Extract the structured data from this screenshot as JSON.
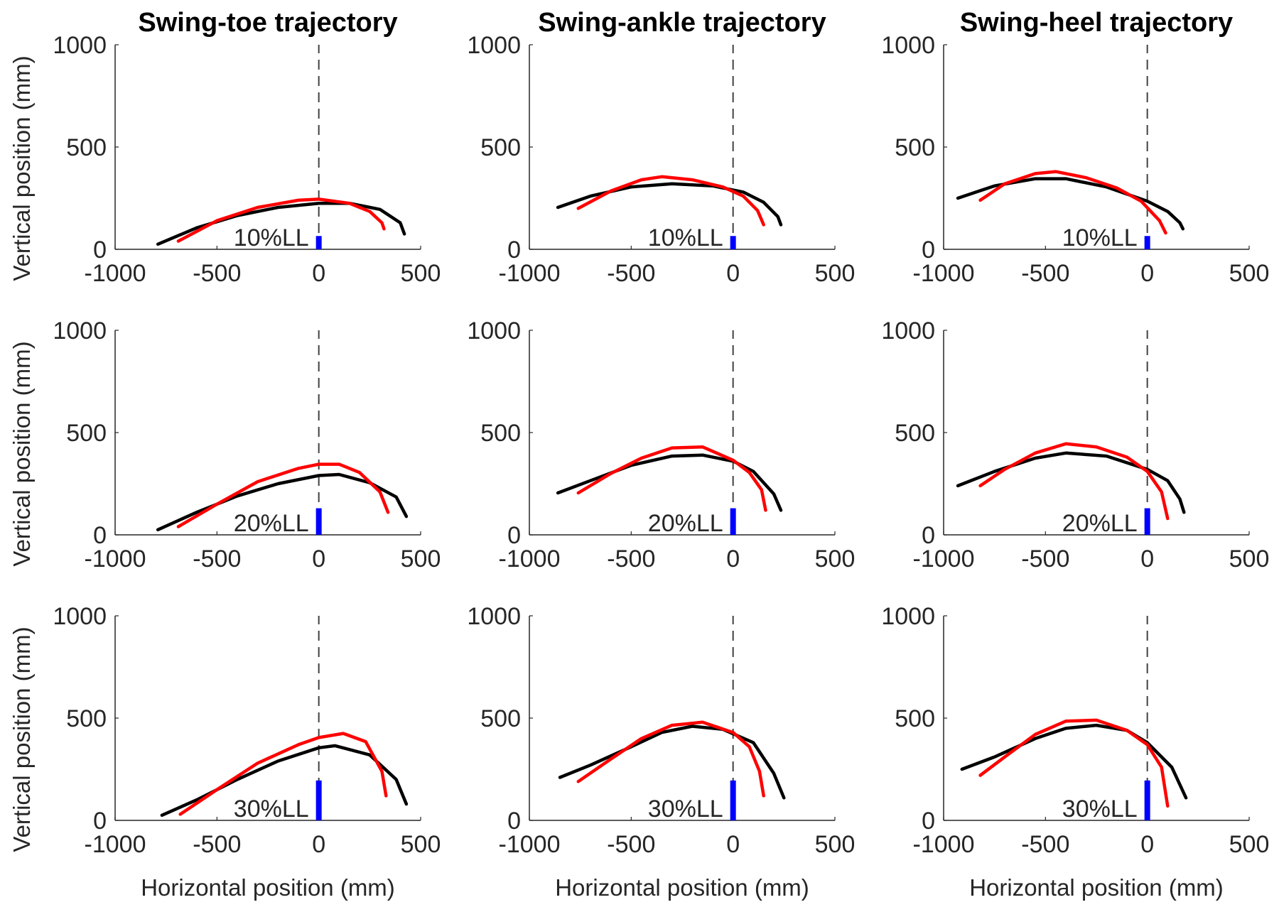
{
  "chart_data": {
    "type": "line",
    "figure_layout": "3x3 grid of panels",
    "columns": [
      {
        "title": "Swing-toe trajectory"
      },
      {
        "title": "Swing-ankle trajectory"
      },
      {
        "title": "Swing-heel trajectory"
      }
    ],
    "rows": [
      {
        "ylabel": "Vertical position (mm)",
        "obstacle_label": "10%LL",
        "obstacle_height": 65
      },
      {
        "ylabel": "Vertical position (mm)",
        "obstacle_label": "20%LL",
        "obstacle_height": 130
      },
      {
        "ylabel": "Vertical position (mm)",
        "obstacle_label": "30%LL",
        "obstacle_height": 195
      }
    ],
    "xlabel": "Horizontal position (mm)",
    "xlim": [
      -1000,
      500
    ],
    "ylim": [
      0,
      1000
    ],
    "xticks": [
      "-1000",
      "-500",
      "0",
      "500"
    ],
    "yticks": [
      "0",
      "500",
      "1000"
    ],
    "reference_line": {
      "x": 0,
      "style": "dashed",
      "color": "#404040"
    },
    "series_colors": {
      "black_curve": "#000000",
      "red_curve": "#ff0000",
      "obstacle": "#0000ff"
    },
    "panels": [
      {
        "row": 0,
        "col": 0,
        "series": [
          {
            "name": "black",
            "points": [
              [
                -790,
                25
              ],
              [
                -600,
                105
              ],
              [
                -400,
                165
              ],
              [
                -200,
                205
              ],
              [
                0,
                225
              ],
              [
                150,
                225
              ],
              [
                300,
                195
              ],
              [
                400,
                130
              ],
              [
                420,
                75
              ]
            ]
          },
          {
            "name": "red",
            "points": [
              [
                -690,
                40
              ],
              [
                -500,
                140
              ],
              [
                -300,
                205
              ],
              [
                -100,
                240
              ],
              [
                0,
                245
              ],
              [
                150,
                225
              ],
              [
                250,
                185
              ],
              [
                310,
                130
              ],
              [
                320,
                100
              ]
            ]
          }
        ]
      },
      {
        "row": 0,
        "col": 1,
        "series": [
          {
            "name": "black",
            "points": [
              [
                -860,
                205
              ],
              [
                -700,
                260
              ],
              [
                -500,
                305
              ],
              [
                -300,
                320
              ],
              [
                -100,
                310
              ],
              [
                50,
                280
              ],
              [
                150,
                230
              ],
              [
                220,
                160
              ],
              [
                235,
                120
              ]
            ]
          },
          {
            "name": "red",
            "points": [
              [
                -760,
                200
              ],
              [
                -600,
                285
              ],
              [
                -450,
                340
              ],
              [
                -350,
                355
              ],
              [
                -200,
                340
              ],
              [
                -50,
                305
              ],
              [
                50,
                260
              ],
              [
                120,
                190
              ],
              [
                150,
                120
              ]
            ]
          }
        ]
      },
      {
        "row": 0,
        "col": 2,
        "series": [
          {
            "name": "black",
            "points": [
              [
                -930,
                250
              ],
              [
                -750,
                310
              ],
              [
                -550,
                345
              ],
              [
                -400,
                345
              ],
              [
                -200,
                305
              ],
              [
                0,
                235
              ],
              [
                100,
                185
              ],
              [
                160,
                130
              ],
              [
                175,
                100
              ]
            ]
          },
          {
            "name": "red",
            "points": [
              [
                -820,
                240
              ],
              [
                -700,
                320
              ],
              [
                -550,
                370
              ],
              [
                -450,
                380
              ],
              [
                -300,
                350
              ],
              [
                -150,
                300
              ],
              [
                -30,
                235
              ],
              [
                60,
                140
              ],
              [
                90,
                80
              ]
            ]
          }
        ]
      },
      {
        "row": 1,
        "col": 0,
        "series": [
          {
            "name": "black",
            "points": [
              [
                -790,
                25
              ],
              [
                -600,
                110
              ],
              [
                -400,
                190
              ],
              [
                -200,
                250
              ],
              [
                0,
                290
              ],
              [
                100,
                295
              ],
              [
                250,
                255
              ],
              [
                380,
                185
              ],
              [
                430,
                90
              ]
            ]
          },
          {
            "name": "red",
            "points": [
              [
                -690,
                40
              ],
              [
                -500,
                150
              ],
              [
                -300,
                260
              ],
              [
                -100,
                325
              ],
              [
                0,
                345
              ],
              [
                100,
                345
              ],
              [
                200,
                305
              ],
              [
                300,
                210
              ],
              [
                340,
                110
              ]
            ]
          }
        ]
      },
      {
        "row": 1,
        "col": 1,
        "series": [
          {
            "name": "black",
            "points": [
              [
                -860,
                205
              ],
              [
                -700,
                265
              ],
              [
                -500,
                340
              ],
              [
                -300,
                385
              ],
              [
                -150,
                390
              ],
              [
                0,
                360
              ],
              [
                100,
                310
              ],
              [
                200,
                200
              ],
              [
                235,
                120
              ]
            ]
          },
          {
            "name": "red",
            "points": [
              [
                -760,
                205
              ],
              [
                -600,
                300
              ],
              [
                -450,
                375
              ],
              [
                -300,
                425
              ],
              [
                -150,
                430
              ],
              [
                0,
                365
              ],
              [
                80,
                305
              ],
              [
                140,
                220
              ],
              [
                160,
                120
              ]
            ]
          }
        ]
      },
      {
        "row": 1,
        "col": 2,
        "series": [
          {
            "name": "black",
            "points": [
              [
                -930,
                240
              ],
              [
                -750,
                310
              ],
              [
                -550,
                375
              ],
              [
                -400,
                400
              ],
              [
                -200,
                385
              ],
              [
                0,
                320
              ],
              [
                100,
                265
              ],
              [
                160,
                175
              ],
              [
                180,
                110
              ]
            ]
          },
          {
            "name": "red",
            "points": [
              [
                -820,
                240
              ],
              [
                -700,
                320
              ],
              [
                -550,
                400
              ],
              [
                -400,
                445
              ],
              [
                -250,
                430
              ],
              [
                -100,
                380
              ],
              [
                0,
                310
              ],
              [
                70,
                210
              ],
              [
                100,
                80
              ]
            ]
          }
        ]
      },
      {
        "row": 2,
        "col": 0,
        "series": [
          {
            "name": "black",
            "points": [
              [
                -770,
                25
              ],
              [
                -600,
                100
              ],
              [
                -400,
                200
              ],
              [
                -200,
                290
              ],
              [
                0,
                355
              ],
              [
                80,
                365
              ],
              [
                250,
                320
              ],
              [
                380,
                200
              ],
              [
                430,
                80
              ]
            ]
          },
          {
            "name": "red",
            "points": [
              [
                -680,
                30
              ],
              [
                -500,
                150
              ],
              [
                -300,
                280
              ],
              [
                -100,
                370
              ],
              [
                0,
                405
              ],
              [
                120,
                425
              ],
              [
                230,
                385
              ],
              [
                310,
                240
              ],
              [
                330,
                120
              ]
            ]
          }
        ]
      },
      {
        "row": 2,
        "col": 1,
        "series": [
          {
            "name": "black",
            "points": [
              [
                -850,
                210
              ],
              [
                -700,
                270
              ],
              [
                -500,
                360
              ],
              [
                -350,
                430
              ],
              [
                -200,
                460
              ],
              [
                -50,
                445
              ],
              [
                100,
                380
              ],
              [
                200,
                230
              ],
              [
                250,
                110
              ]
            ]
          },
          {
            "name": "red",
            "points": [
              [
                -760,
                190
              ],
              [
                -600,
                300
              ],
              [
                -450,
                400
              ],
              [
                -300,
                465
              ],
              [
                -150,
                480
              ],
              [
                0,
                430
              ],
              [
                80,
                360
              ],
              [
                130,
                240
              ],
              [
                150,
                120
              ]
            ]
          }
        ]
      },
      {
        "row": 2,
        "col": 2,
        "series": [
          {
            "name": "black",
            "points": [
              [
                -910,
                250
              ],
              [
                -750,
                310
              ],
              [
                -550,
                400
              ],
              [
                -400,
                450
              ],
              [
                -250,
                465
              ],
              [
                -100,
                440
              ],
              [
                0,
                380
              ],
              [
                120,
                260
              ],
              [
                190,
                110
              ]
            ]
          },
          {
            "name": "red",
            "points": [
              [
                -820,
                220
              ],
              [
                -700,
                310
              ],
              [
                -550,
                420
              ],
              [
                -400,
                485
              ],
              [
                -250,
                490
              ],
              [
                -100,
                440
              ],
              [
                0,
                370
              ],
              [
                70,
                260
              ],
              [
                100,
                70
              ]
            ]
          }
        ]
      }
    ]
  }
}
